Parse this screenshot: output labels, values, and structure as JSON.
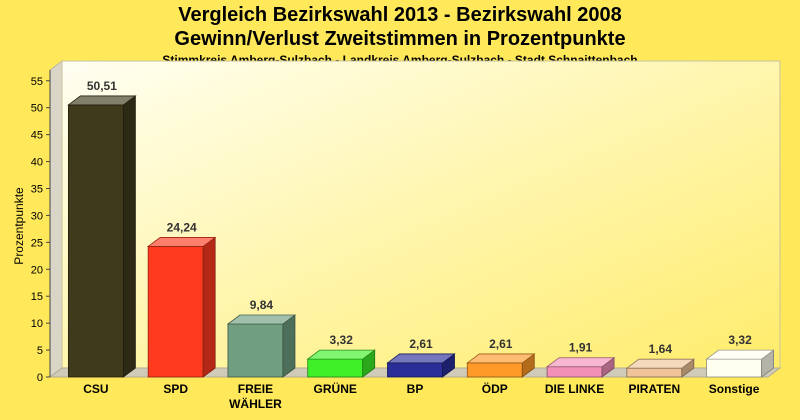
{
  "chart_data": {
    "type": "bar",
    "title": "Vergleich Bezirkswahl 2013 - Bezirkswahl 2008",
    "subtitle_line": "Gewinn/Verlust Zweitstimmen in Prozentpunkte",
    "caption": "Stimmkreis Amberg-Sulzbach - Landkreis Amberg-Sulzbach - Stadt Schnaittenbach",
    "ylabel": "Prozentpunkte",
    "xlabel": "",
    "ylim": [
      0,
      57
    ],
    "yticks": [
      "0",
      "5",
      "10",
      "15",
      "20",
      "25",
      "30",
      "35",
      "40",
      "45",
      "50",
      "55"
    ],
    "grid": false,
    "categories": [
      [
        "CSU"
      ],
      [
        "SPD"
      ],
      [
        "FREIE",
        "WÄHLER"
      ],
      [
        "GRÜNE"
      ],
      [
        "BP"
      ],
      [
        "ÖDP"
      ],
      [
        "DIE LINKE"
      ],
      [
        "PIRATEN"
      ],
      [
        "Sonstige"
      ]
    ],
    "values": [
      50.51,
      24.24,
      9.84,
      3.32,
      2.61,
      2.61,
      1.91,
      1.64,
      3.32
    ],
    "value_labels": [
      "50,51",
      "24,24",
      "9,84",
      "3,32",
      "2,61",
      "2,61",
      "1,91",
      "1,64",
      "3,32"
    ],
    "colors": [
      "#3f3a1c",
      "#ff3a1e",
      "#6f9e80",
      "#3ef028",
      "#2a2e98",
      "#ff9a28",
      "#f290b8",
      "#f0c498",
      "#fffff0"
    ],
    "background_color": "#ffe95a"
  }
}
